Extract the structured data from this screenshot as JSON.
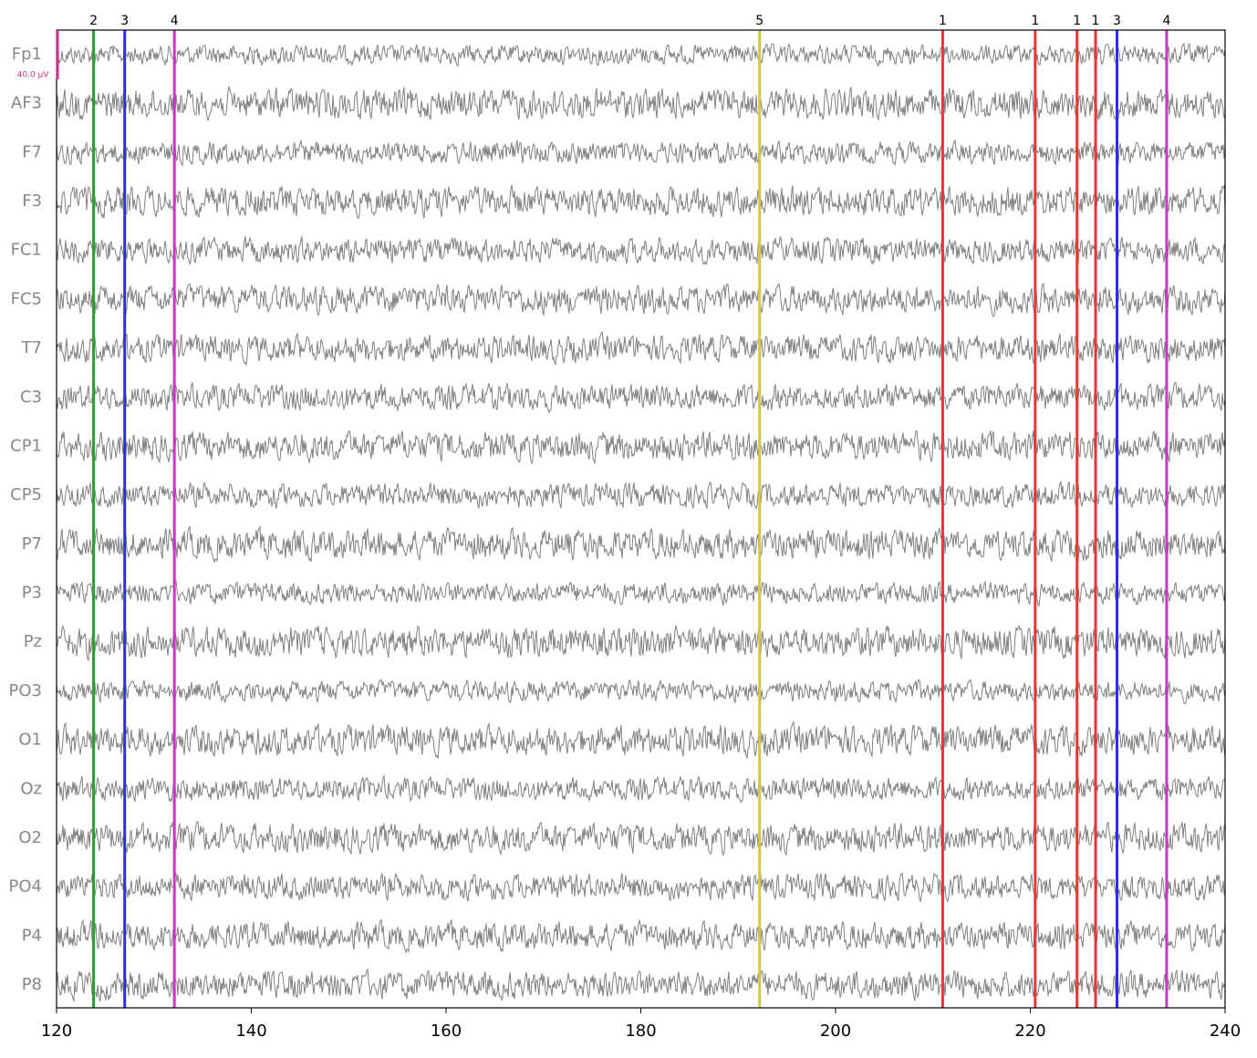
{
  "chart_data": {
    "type": "eeg",
    "channels": [
      "Fp1",
      "AF3",
      "F7",
      "F3",
      "FC1",
      "FC5",
      "T7",
      "C3",
      "CP1",
      "CP5",
      "P7",
      "P3",
      "Pz",
      "PO3",
      "O1",
      "Oz",
      "O2",
      "PO4",
      "P4",
      "P8"
    ],
    "scale_label": "40.0 µV",
    "xlim": [
      120,
      240
    ],
    "xticks": [
      120,
      140,
      160,
      180,
      200,
      220,
      240
    ],
    "events": [
      {
        "x": 123.8,
        "label": "2",
        "color": "#2ca02c"
      },
      {
        "x": 127.0,
        "label": "3",
        "color": "#2b2bff"
      },
      {
        "x": 132.1,
        "label": "4",
        "color": "#cc33cc"
      },
      {
        "x": 192.2,
        "label": "5",
        "color": "#cccc33"
      },
      {
        "x": 211.0,
        "label": "1",
        "color": "#ee3333"
      },
      {
        "x": 220.5,
        "label": "1",
        "color": "#ee3333"
      },
      {
        "x": 224.8,
        "label": "1",
        "color": "#ee3333"
      },
      {
        "x": 226.7,
        "label": "1",
        "color": "#ee3333"
      },
      {
        "x": 228.9,
        "label": "3",
        "color": "#2b2bff"
      },
      {
        "x": 234.0,
        "label": "4",
        "color": "#cc33cc"
      }
    ]
  }
}
